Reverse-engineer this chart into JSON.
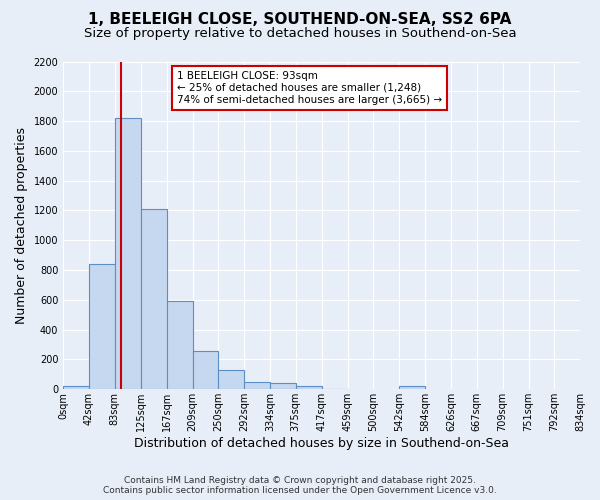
{
  "title_line1": "1, BEELEIGH CLOSE, SOUTHEND-ON-SEA, SS2 6PA",
  "title_line2": "Size of property relative to detached houses in Southend-on-Sea",
  "xlabel": "Distribution of detached houses by size in Southend-on-Sea",
  "ylabel": "Number of detached properties",
  "bin_edges": [
    0,
    41.5,
    83,
    125,
    167,
    209,
    250,
    292,
    334,
    375,
    417,
    459,
    500,
    542,
    584,
    626,
    667,
    709,
    751,
    792,
    834
  ],
  "bin_labels": [
    "0sqm",
    "42sqm",
    "83sqm",
    "125sqm",
    "167sqm",
    "209sqm",
    "250sqm",
    "292sqm",
    "334sqm",
    "375sqm",
    "417sqm",
    "459sqm",
    "500sqm",
    "542sqm",
    "584sqm",
    "626sqm",
    "667sqm",
    "709sqm",
    "751sqm",
    "792sqm",
    "834sqm"
  ],
  "bar_heights": [
    20,
    840,
    1820,
    1210,
    595,
    255,
    130,
    50,
    40,
    25,
    5,
    0,
    0,
    20,
    0,
    0,
    0,
    0,
    0,
    0
  ],
  "bar_color": "#c5d8f0",
  "bar_edge_color": "#5b8ec4",
  "property_size": 93,
  "property_label": "1 BEELEIGH CLOSE: 93sqm",
  "annotation_line2": "← 25% of detached houses are smaller (1,248)",
  "annotation_line3": "74% of semi-detached houses are larger (3,665) →",
  "vline_color": "#cc0000",
  "annotation_box_edge_color": "#cc0000",
  "ylim": [
    0,
    2200
  ],
  "yticks": [
    0,
    200,
    400,
    600,
    800,
    1000,
    1200,
    1400,
    1600,
    1800,
    2000,
    2200
  ],
  "footer_line1": "Contains HM Land Registry data © Crown copyright and database right 2025.",
  "footer_line2": "Contains public sector information licensed under the Open Government Licence v3.0.",
  "bg_color": "#e8eef8",
  "plot_bg_color": "#e8eef8",
  "grid_color": "#ffffff",
  "title_fontsize": 11,
  "subtitle_fontsize": 9.5,
  "axis_label_fontsize": 9,
  "tick_fontsize": 7,
  "annotation_fontsize": 7.5
}
